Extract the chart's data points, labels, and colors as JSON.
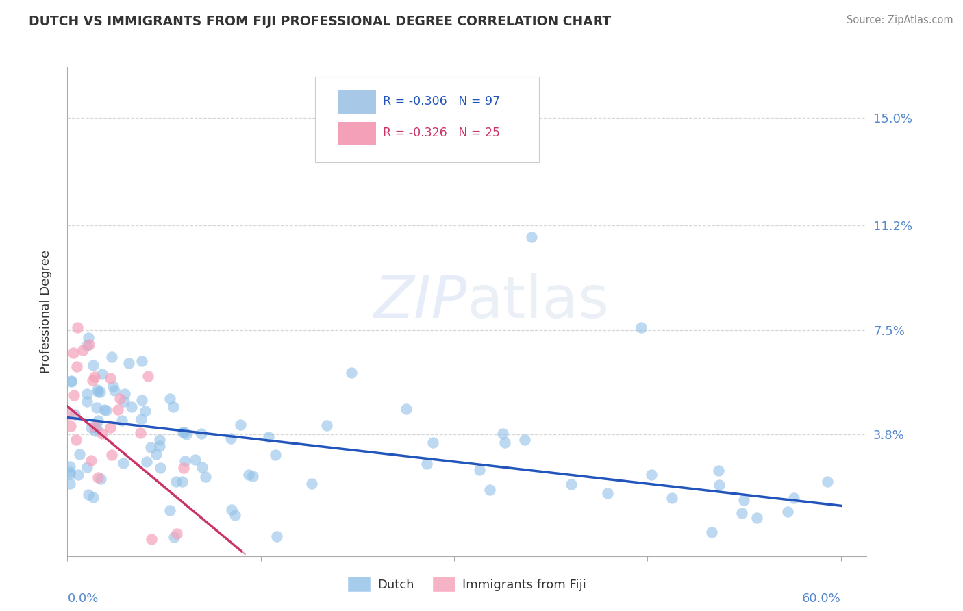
{
  "title": "DUTCH VS IMMIGRANTS FROM FIJI PROFESSIONAL DEGREE CORRELATION CHART",
  "source": "Source: ZipAtlas.com",
  "ylabel_label": "Professional Degree",
  "watermark": "ZIPatlas",
  "xlim": [
    0.0,
    0.62
  ],
  "ylim": [
    -0.005,
    0.168
  ],
  "yticks": [
    0.038,
    0.075,
    0.112,
    0.15
  ],
  "ytick_labels": [
    "3.8%",
    "7.5%",
    "11.2%",
    "15.0%"
  ],
  "legend_labels_bottom": [
    "Dutch",
    "Immigrants from Fiji"
  ],
  "dutch_color": "#90c0e8",
  "fiji_color": "#f4a0b8",
  "dutch_line_color": "#2255bb",
  "fiji_line_color": "#cc3366",
  "background_color": "#ffffff",
  "grid_color": "#cccccc",
  "title_color": "#333333",
  "axis_label_color": "#333333",
  "tick_color": "#5588cc",
  "legend_box_color": "#a8c8e8",
  "legend_box_color2": "#f4a0b8",
  "legend_text1": "R = -0.306   N = 97",
  "legend_text2": "R = -0.326   N = 25"
}
